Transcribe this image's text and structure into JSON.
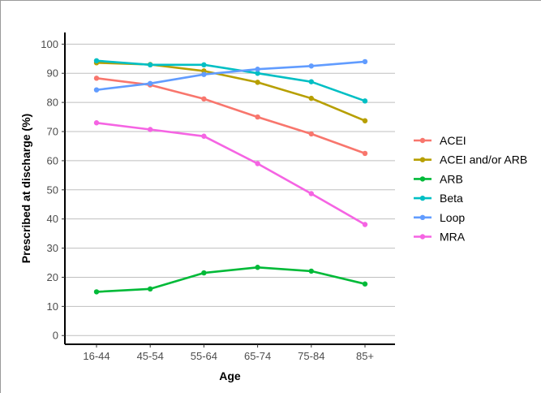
{
  "chart_data": {
    "type": "line",
    "title": "",
    "xlabel": "Age",
    "ylabel": "Prescribed at discharge (%)",
    "categories": [
      "16-44",
      "45-54",
      "55-64",
      "65-74",
      "75-84",
      "85+"
    ],
    "yticks": [
      0,
      10,
      20,
      30,
      40,
      50,
      60,
      70,
      80,
      90,
      100
    ],
    "ylim": [
      -3,
      104
    ],
    "grid": true,
    "legend_position": "right",
    "series": [
      {
        "name": "ACEI",
        "color": "#F8766D",
        "values": [
          88.3,
          86.0,
          81.2,
          75.0,
          69.2,
          62.5
        ]
      },
      {
        "name": "ACEI and/or ARB",
        "color": "#B79F00",
        "values": [
          93.6,
          93.0,
          90.8,
          86.9,
          81.4,
          73.7
        ]
      },
      {
        "name": "ARB",
        "color": "#00BA38",
        "values": [
          15.0,
          16.0,
          21.5,
          23.4,
          22.1,
          17.7
        ]
      },
      {
        "name": "Beta",
        "color": "#00BFC4",
        "values": [
          94.3,
          92.9,
          92.9,
          90.0,
          87.1,
          80.5
        ]
      },
      {
        "name": "Loop",
        "color": "#619CFF",
        "values": [
          84.3,
          86.5,
          89.6,
          91.4,
          92.5,
          94.0
        ]
      },
      {
        "name": "MRA",
        "color": "#F564E3",
        "values": [
          73.0,
          70.7,
          68.4,
          59.0,
          48.7,
          38.1
        ]
      }
    ]
  }
}
